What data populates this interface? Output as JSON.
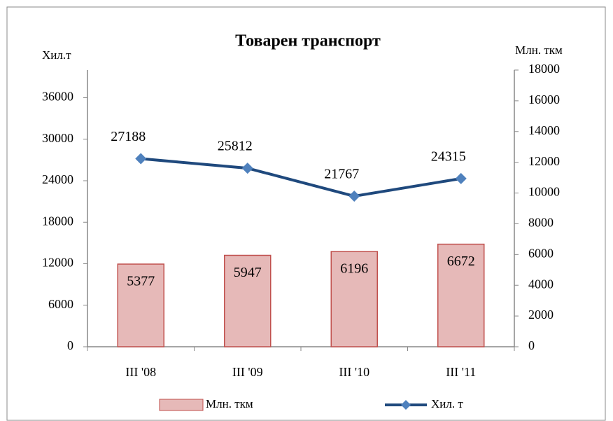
{
  "chart_data": {
    "type": "combo",
    "title": "Товарен транспорт",
    "y_label": "Хил.т",
    "y2_label": "Млн. ткм",
    "categories": [
      "III '08",
      "III '09",
      "III '10",
      "III '11"
    ],
    "series": [
      {
        "name": "Млн. ткм",
        "type": "bar",
        "axis": "y2",
        "color": "#e6b9b8",
        "edge": "#c0504d",
        "values": [
          5377,
          5947,
          6196,
          6672
        ]
      },
      {
        "name": "Хил. т",
        "type": "line",
        "axis": "y",
        "color": "#1f497d",
        "marker": "#4f81bd",
        "values": [
          27188,
          25812,
          21767,
          24315
        ]
      }
    ],
    "ylim": [
      0,
      40000
    ],
    "yticks": [
      0,
      6000,
      12000,
      18000,
      24000,
      30000,
      36000
    ],
    "y2lim": [
      0,
      18000
    ],
    "y2ticks": [
      0,
      2000,
      4000,
      6000,
      8000,
      10000,
      12000,
      14000,
      16000,
      18000
    ],
    "legend": "bottom"
  }
}
